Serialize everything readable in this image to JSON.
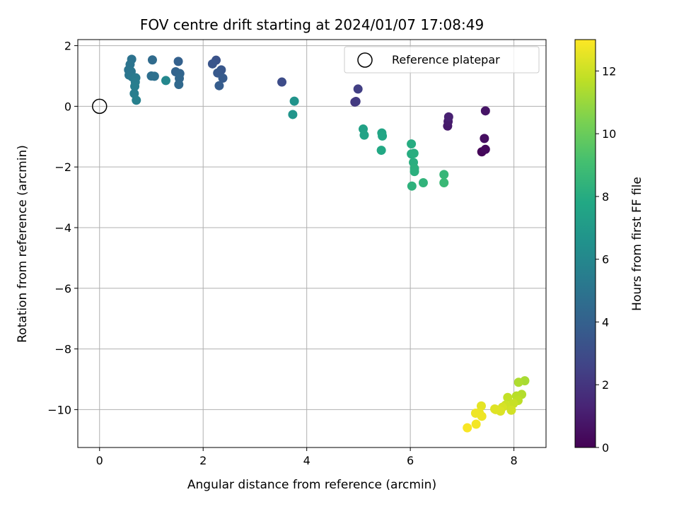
{
  "chart_data": {
    "type": "scatter",
    "title": "FOV centre drift starting at 2024/01/07 17:08:49",
    "xlabel": "Angular distance from reference (arcmin)",
    "ylabel": "Rotation from reference (arcmin)",
    "xlim": [
      -0.42,
      8.62
    ],
    "ylim": [
      -11.25,
      2.2
    ],
    "xticks": [
      0,
      2,
      4,
      6,
      8
    ],
    "yticks": [
      2,
      0,
      -2,
      -4,
      -6,
      -8,
      -10
    ],
    "xtick_labels": [
      "0",
      "2",
      "4",
      "6",
      "8"
    ],
    "ytick_labels": [
      "2",
      "0",
      "−2",
      "−4",
      "−6",
      "−8",
      "−10"
    ],
    "grid": true,
    "legend": {
      "position": "top-right",
      "entries": [
        {
          "label": "Reference platepar",
          "marker": "open-circle"
        }
      ]
    },
    "reference_point": {
      "x": 0,
      "y": 0
    },
    "colorbar": {
      "label": "Hours from first FF file",
      "range": [
        0,
        13
      ],
      "ticks": [
        0,
        2,
        4,
        6,
        8,
        10,
        12
      ],
      "tick_labels": [
        "0",
        "2",
        "4",
        "6",
        "8",
        "10",
        "12"
      ],
      "colormap": "viridis"
    },
    "series": [
      {
        "points": [
          {
            "x": 7.38,
            "y": -1.5,
            "c": 0.2
          },
          {
            "x": 7.45,
            "y": -1.42,
            "c": 0.3
          },
          {
            "x": 7.43,
            "y": -1.06,
            "c": 0.5
          },
          {
            "x": 7.45,
            "y": -0.15,
            "c": 0.7
          },
          {
            "x": 6.72,
            "y": -0.65,
            "c": 0.9
          },
          {
            "x": 6.73,
            "y": -0.5,
            "c": 1.0
          },
          {
            "x": 6.74,
            "y": -0.35,
            "c": 1.2
          },
          {
            "x": 4.93,
            "y": 0.14,
            "c": 2.0
          },
          {
            "x": 4.95,
            "y": 0.16,
            "c": 2.2
          },
          {
            "x": 4.99,
            "y": 0.57,
            "c": 2.4
          },
          {
            "x": 3.52,
            "y": 0.8,
            "c": 3.0
          },
          {
            "x": 2.25,
            "y": 1.52,
            "c": 3.3
          },
          {
            "x": 2.18,
            "y": 1.4,
            "c": 3.4
          },
          {
            "x": 2.35,
            "y": 1.2,
            "c": 3.5
          },
          {
            "x": 2.28,
            "y": 1.1,
            "c": 3.6
          },
          {
            "x": 2.38,
            "y": 0.93,
            "c": 3.7
          },
          {
            "x": 2.31,
            "y": 0.68,
            "c": 3.8
          },
          {
            "x": 1.52,
            "y": 1.48,
            "c": 4.0
          },
          {
            "x": 1.47,
            "y": 1.14,
            "c": 4.1
          },
          {
            "x": 1.55,
            "y": 1.08,
            "c": 4.2
          },
          {
            "x": 1.54,
            "y": 0.92,
            "c": 4.3
          },
          {
            "x": 1.53,
            "y": 0.72,
            "c": 4.4
          },
          {
            "x": 1.02,
            "y": 1.53,
            "c": 4.5
          },
          {
            "x": 1.0,
            "y": 1.0,
            "c": 4.7
          },
          {
            "x": 1.06,
            "y": 0.99,
            "c": 4.8
          },
          {
            "x": 0.62,
            "y": 1.55,
            "c": 4.9
          },
          {
            "x": 0.59,
            "y": 1.38,
            "c": 5.0
          },
          {
            "x": 0.56,
            "y": 1.2,
            "c": 5.0
          },
          {
            "x": 0.61,
            "y": 1.15,
            "c": 5.1
          },
          {
            "x": 0.57,
            "y": 1.03,
            "c": 5.1
          },
          {
            "x": 0.63,
            "y": 0.97,
            "c": 5.2
          },
          {
            "x": 0.68,
            "y": 0.92,
            "c": 5.3
          },
          {
            "x": 0.7,
            "y": 0.94,
            "c": 5.3
          },
          {
            "x": 0.69,
            "y": 0.8,
            "c": 5.4
          },
          {
            "x": 0.68,
            "y": 0.66,
            "c": 5.5
          },
          {
            "x": 0.67,
            "y": 0.42,
            "c": 5.5
          },
          {
            "x": 0.71,
            "y": 0.2,
            "c": 5.6
          },
          {
            "x": 1.28,
            "y": 0.85,
            "c": 6.0
          },
          {
            "x": 3.76,
            "y": 0.17,
            "c": 6.6
          },
          {
            "x": 3.73,
            "y": -0.27,
            "c": 6.7
          },
          {
            "x": 5.09,
            "y": -0.75,
            "c": 7.4
          },
          {
            "x": 5.11,
            "y": -0.95,
            "c": 7.5
          },
          {
            "x": 5.45,
            "y": -0.88,
            "c": 7.6
          },
          {
            "x": 5.46,
            "y": -0.98,
            "c": 7.7
          },
          {
            "x": 5.44,
            "y": -1.45,
            "c": 7.8
          },
          {
            "x": 6.02,
            "y": -1.24,
            "c": 8.0
          },
          {
            "x": 6.02,
            "y": -1.57,
            "c": 8.0
          },
          {
            "x": 6.07,
            "y": -1.55,
            "c": 8.1
          },
          {
            "x": 6.06,
            "y": -1.85,
            "c": 8.1
          },
          {
            "x": 6.08,
            "y": -2.05,
            "c": 8.2
          },
          {
            "x": 6.08,
            "y": -2.15,
            "c": 8.2
          },
          {
            "x": 6.03,
            "y": -2.63,
            "c": 8.3
          },
          {
            "x": 6.25,
            "y": -2.52,
            "c": 8.4
          },
          {
            "x": 6.65,
            "y": -2.25,
            "c": 8.6
          },
          {
            "x": 6.65,
            "y": -2.52,
            "c": 8.7
          },
          {
            "x": 8.21,
            "y": -9.05,
            "c": 11.3
          },
          {
            "x": 8.09,
            "y": -9.1,
            "c": 11.4
          },
          {
            "x": 8.15,
            "y": -9.5,
            "c": 11.5
          },
          {
            "x": 8.05,
            "y": -9.55,
            "c": 11.6
          },
          {
            "x": 8.08,
            "y": -9.7,
            "c": 11.7
          },
          {
            "x": 7.88,
            "y": -9.6,
            "c": 11.8
          },
          {
            "x": 7.99,
            "y": -9.8,
            "c": 11.9
          },
          {
            "x": 7.84,
            "y": -9.85,
            "c": 12.0
          },
          {
            "x": 7.95,
            "y": -10.02,
            "c": 12.1
          },
          {
            "x": 7.78,
            "y": -9.92,
            "c": 12.2
          },
          {
            "x": 7.74,
            "y": -10.05,
            "c": 12.3
          },
          {
            "x": 7.63,
            "y": -9.98,
            "c": 12.4
          },
          {
            "x": 7.65,
            "y": -10.0,
            "c": 12.4
          },
          {
            "x": 7.37,
            "y": -9.88,
            "c": 12.5
          },
          {
            "x": 7.33,
            "y": -10.1,
            "c": 12.6
          },
          {
            "x": 7.26,
            "y": -10.12,
            "c": 12.7
          },
          {
            "x": 7.38,
            "y": -10.22,
            "c": 12.7
          },
          {
            "x": 7.27,
            "y": -10.48,
            "c": 12.8
          },
          {
            "x": 7.1,
            "y": -10.6,
            "c": 12.9
          }
        ]
      }
    ]
  }
}
